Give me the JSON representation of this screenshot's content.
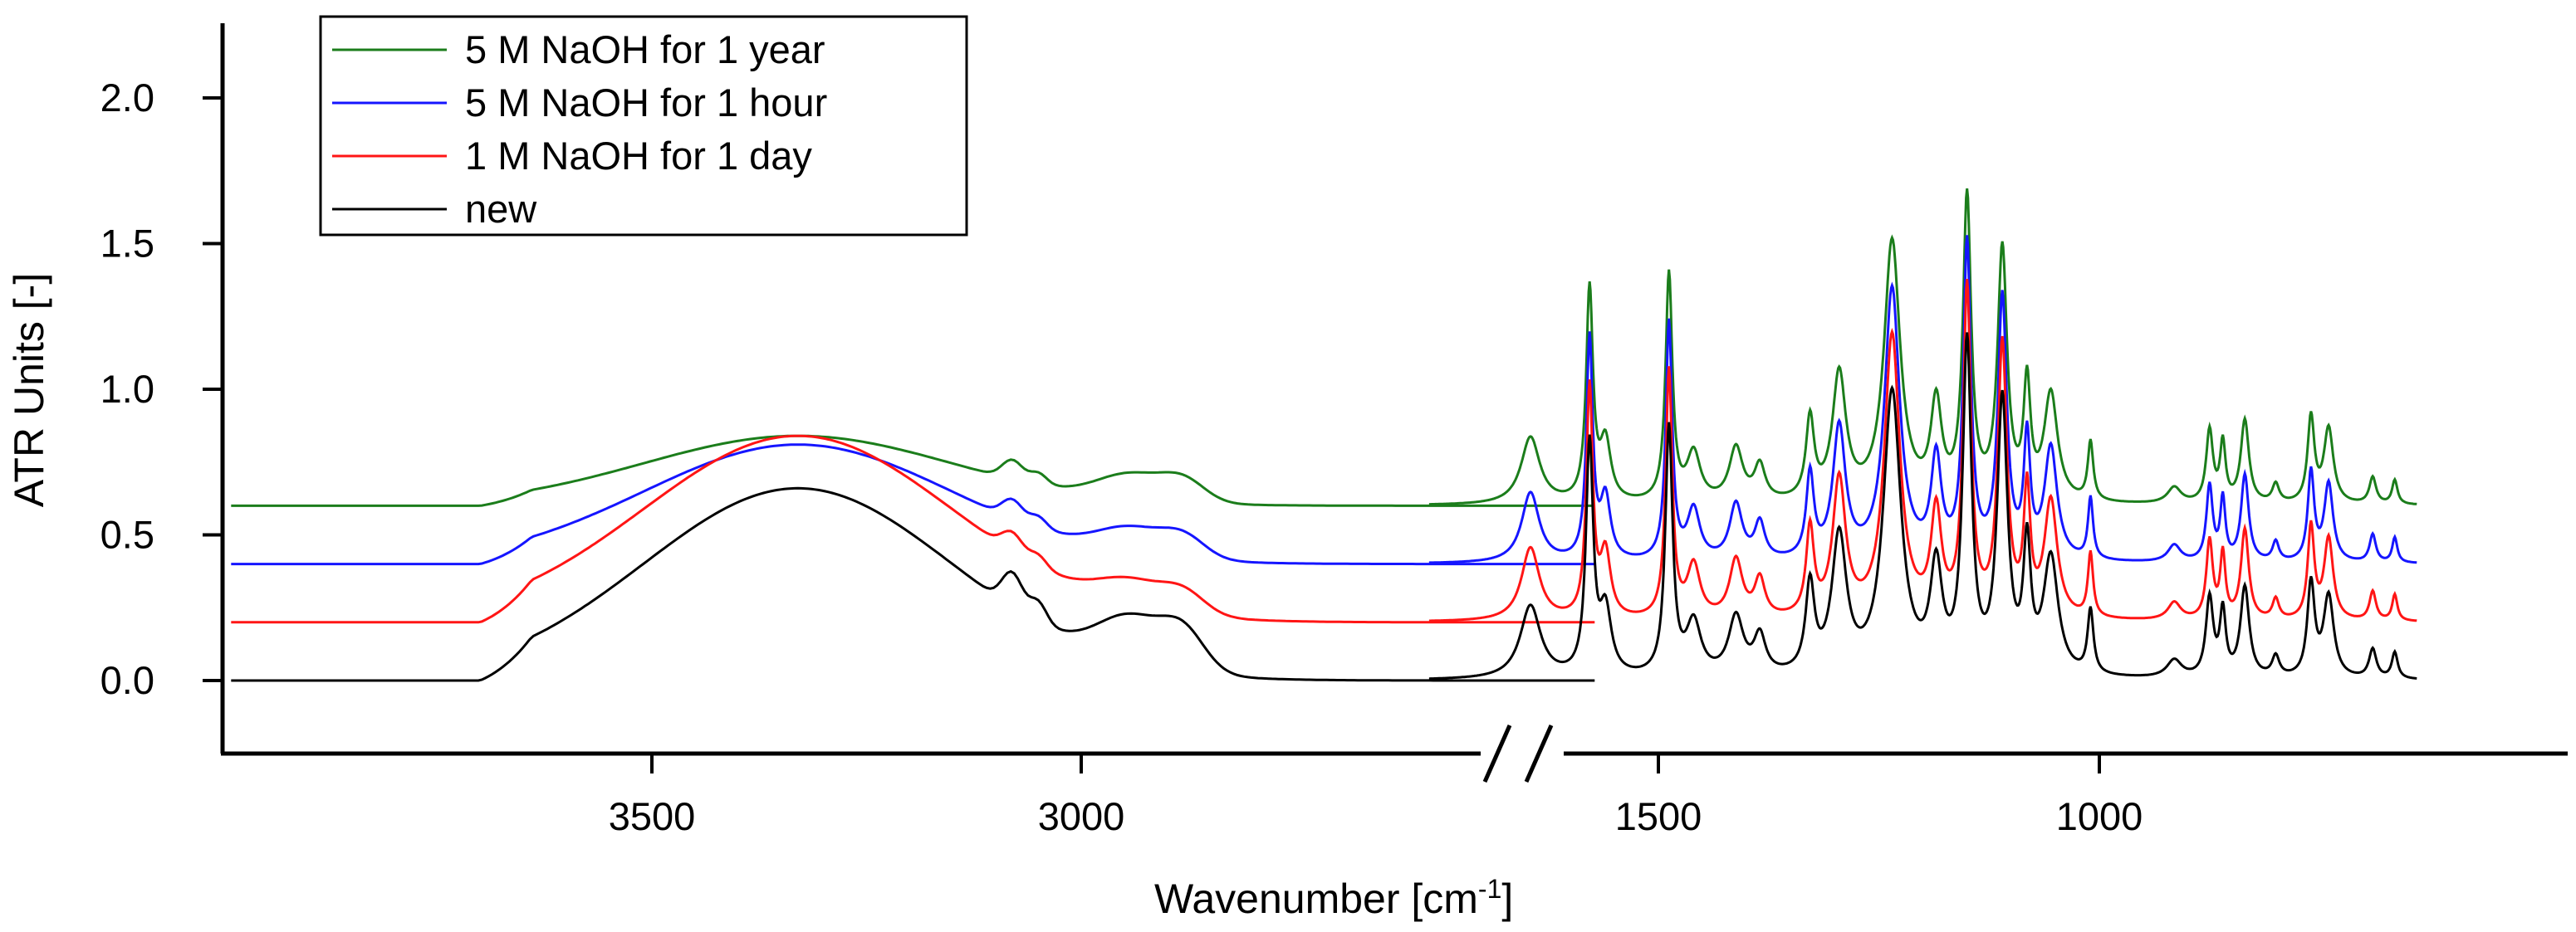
{
  "chart_data": {
    "type": "line",
    "title": "",
    "xlabel": "Wavenumber [cm",
    "xlabel_sup": "-1",
    "xlabel_close": "]",
    "ylabel": "ATR Units [-]",
    "ylim": [
      -0.25,
      2.25
    ],
    "y_ticks": [
      "0.0",
      "0.5",
      "1.0",
      "1.5",
      "2.0"
    ],
    "y_tick_values": [
      0,
      0.5,
      1,
      1.5,
      2
    ],
    "x_segments": [
      {
        "range": [
          4000,
          2450
        ],
        "ticks": [
          3500,
          3000
        ],
        "tick_labels": [
          "3500",
          "3000"
        ]
      },
      {
        "range": [
          1800,
          640
        ],
        "ticks": [
          1500,
          1000
        ],
        "tick_labels": [
          "1500",
          "1000"
        ]
      }
    ],
    "axis_break": true,
    "legend_position": "top-left",
    "series": [
      {
        "name": "5 M NaOH for 1 year",
        "color": "#1b7d1b",
        "offset": 0.6,
        "bump": 0.24,
        "sharp": 0.92
      },
      {
        "name": "5 M NaOH for 1 hour",
        "color": "#1515ff",
        "offset": 0.4,
        "bump": 0.41,
        "sharp": 0.86
      },
      {
        "name": "1 M NaOH for 1 day",
        "color": "#ff1515",
        "offset": 0.2,
        "bump": 0.64,
        "sharp": 0.88
      },
      {
        "name": "new",
        "color": "#000000",
        "offset": 0.0,
        "bump": 0.66,
        "sharp": 1.0
      }
    ],
    "peaks_high_wavenumber": [
      {
        "x": 3330,
        "h": 1.0,
        "w": 180
      },
      {
        "x": 3080,
        "h": 0.12,
        "w": 12
      },
      {
        "x": 3050,
        "h": 0.07,
        "w": 10
      },
      {
        "x": 2940,
        "h": 0.16,
        "w": 40
      },
      {
        "x": 2880,
        "h": 0.12,
        "w": 25
      }
    ],
    "peaks_fingerprint": [
      {
        "x": 1645,
        "h": 0.25,
        "w": 14
      },
      {
        "x": 1578,
        "h": 0.79,
        "w": 5
      },
      {
        "x": 1560,
        "h": 0.22,
        "w": 8
      },
      {
        "x": 1488,
        "h": 0.85,
        "w": 5
      },
      {
        "x": 1460,
        "h": 0.18,
        "w": 10
      },
      {
        "x": 1412,
        "h": 0.2,
        "w": 10
      },
      {
        "x": 1385,
        "h": 0.13,
        "w": 8
      },
      {
        "x": 1328,
        "h": 0.3,
        "w": 6
      },
      {
        "x": 1295,
        "h": 0.47,
        "w": 10
      },
      {
        "x": 1235,
        "h": 0.97,
        "w": 12
      },
      {
        "x": 1185,
        "h": 0.35,
        "w": 8
      },
      {
        "x": 1150,
        "h": 1.12,
        "w": 6
      },
      {
        "x": 1110,
        "h": 0.93,
        "w": 7
      },
      {
        "x": 1082,
        "h": 0.42,
        "w": 5
      },
      {
        "x": 1055,
        "h": 0.4,
        "w": 10
      },
      {
        "x": 1010,
        "h": 0.22,
        "w": 4
      },
      {
        "x": 915,
        "h": 0.06,
        "w": 10
      },
      {
        "x": 875,
        "h": 0.27,
        "w": 5
      },
      {
        "x": 860,
        "h": 0.22,
        "w": 4
      },
      {
        "x": 835,
        "h": 0.31,
        "w": 6
      },
      {
        "x": 800,
        "h": 0.07,
        "w": 5
      },
      {
        "x": 760,
        "h": 0.32,
        "w": 5
      },
      {
        "x": 740,
        "h": 0.28,
        "w": 7
      },
      {
        "x": 690,
        "h": 0.1,
        "w": 5
      },
      {
        "x": 665,
        "h": 0.09,
        "w": 4
      }
    ]
  }
}
